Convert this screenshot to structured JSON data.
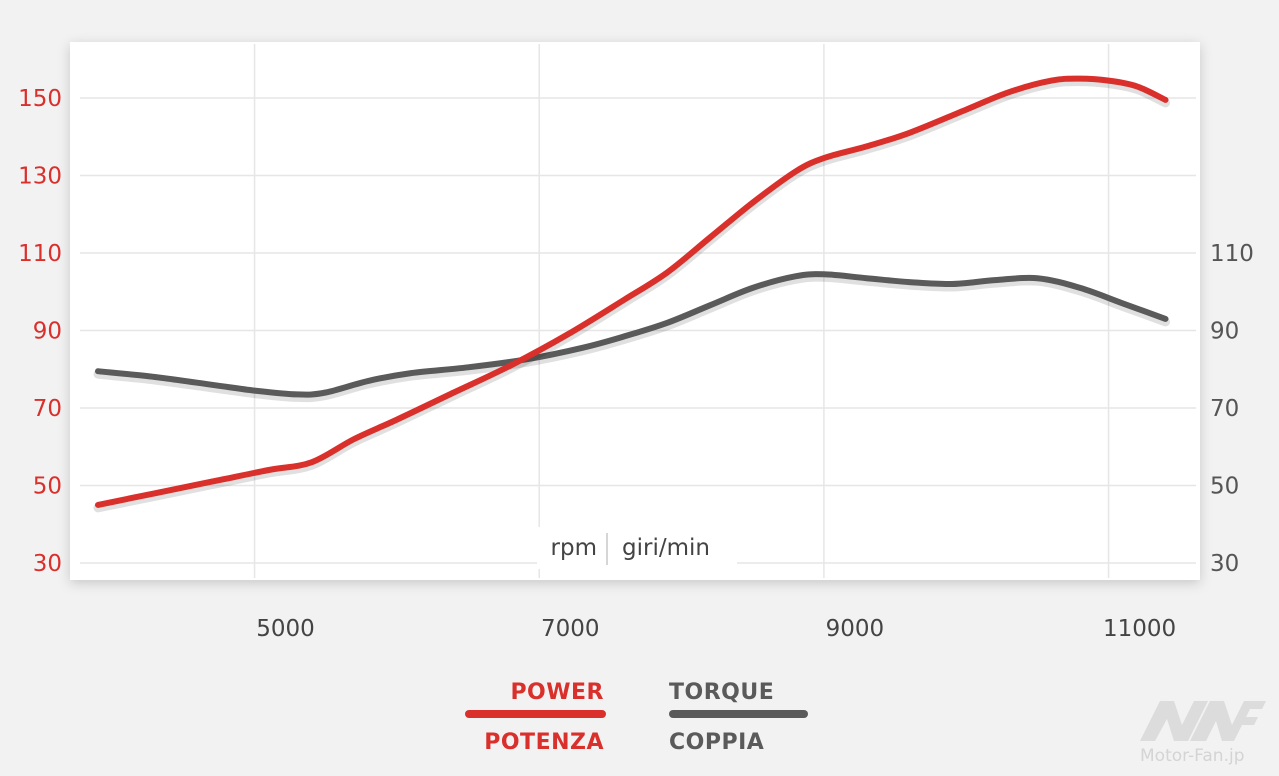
{
  "chart_data": {
    "type": "line",
    "xlabel": "rpm | giri/min",
    "x_unit_primary": "rpm",
    "x_unit_secondary": "giri/min",
    "x_ticks": [
      5000,
      7000,
      9000,
      11000
    ],
    "xlim": [
      3800,
      11600
    ],
    "y_left_ticks": [
      30,
      50,
      70,
      90,
      110,
      130,
      150
    ],
    "y_right_ticks": [
      30,
      50,
      70,
      90,
      110
    ],
    "ylim": [
      30,
      160
    ],
    "grid": true,
    "legend_placement": "bottom-center",
    "colors": {
      "power": "#d9302c",
      "torque": "#5a5a5a"
    },
    "series": [
      {
        "name": "POWER",
        "name_alt": "POTENZA",
        "axis": "left",
        "x": [
          3900,
          4300,
          4700,
          5100,
          5400,
          5700,
          6000,
          6400,
          6800,
          7200,
          7600,
          7900,
          8200,
          8500,
          8800,
          9000,
          9300,
          9600,
          10000,
          10300,
          10600,
          10800,
          11000,
          11200,
          11400
        ],
        "y": [
          45,
          48,
          51,
          54,
          56,
          62,
          67,
          74,
          81,
          89,
          98,
          105,
          114,
          123,
          131,
          134.5,
          137.5,
          141,
          147,
          151.5,
          154.5,
          155,
          154.5,
          153,
          149.5
        ]
      },
      {
        "name": "TORQUE",
        "name_alt": "COPPIA",
        "axis": "right",
        "x": [
          3900,
          4300,
          4700,
          5000,
          5300,
          5500,
          5800,
          6100,
          6500,
          6900,
          7300,
          7600,
          7900,
          8200,
          8500,
          8800,
          9000,
          9300,
          9600,
          9900,
          10200,
          10500,
          10800,
          11100,
          11400
        ],
        "y": [
          79.5,
          78,
          76,
          74.5,
          73.5,
          74,
          77,
          79,
          80.5,
          82.5,
          85.5,
          88.5,
          92,
          96.5,
          101,
          104,
          104.5,
          103.5,
          102.5,
          102,
          103,
          103.5,
          101,
          97,
          93
        ]
      }
    ]
  },
  "legend": {
    "power_top": "POWER",
    "power_bottom": "POTENZA",
    "torque_top": "TORQUE",
    "torque_bottom": "COPPIA"
  },
  "watermark": {
    "text": "Motor-Fan.jp"
  }
}
